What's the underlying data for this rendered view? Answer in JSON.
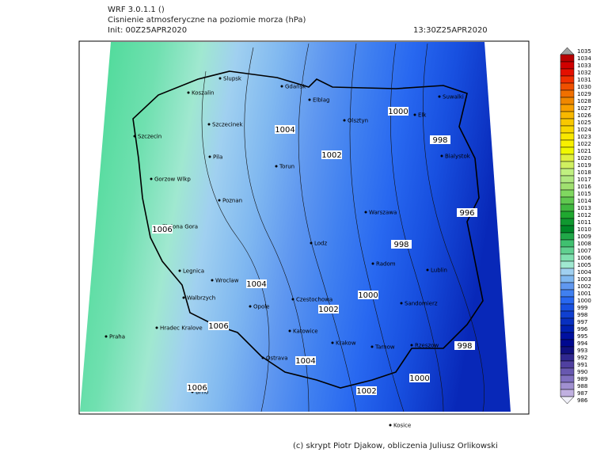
{
  "header": {
    "model": "WRF 3.0.1.1 ()",
    "title": "Cisnienie atmosferyczne na poziomie morza (hPa)",
    "init": "Init: 00Z25APR2020",
    "valid": "13:30Z25APR2020"
  },
  "cities": [
    "Slupsk",
    "Koszalin",
    "Szczecin",
    "Szczecinek",
    "Gdańsk",
    "Elblag",
    "Olsztyn",
    "Elk",
    "Suwalki",
    "Bialystok",
    "Gorzow Wlkp",
    "Pila",
    "Torun",
    "Poznan",
    "Zielona Gora",
    "Warszawa",
    "Lodz",
    "Radom",
    "Lublin",
    "Legnica",
    "Wroclaw",
    "Walbrzych",
    "Opole",
    "Czestochowa",
    "Hradec Kralove",
    "Praha",
    "Katowice",
    "Krakow",
    "Tarnow",
    "Rzeszow",
    "Sandomierz",
    "Ostrava",
    "Brno",
    "Kosice"
  ],
  "isobar_labels": [
    1006,
    1006,
    1006,
    1004,
    1004,
    1004,
    1002,
    1002,
    1002,
    1000,
    1000,
    1000,
    998,
    998,
    998,
    996
  ],
  "colorbar": {
    "levels": [
      1035,
      1034,
      1033,
      1032,
      1031,
      1030,
      1029,
      1028,
      1027,
      1026,
      1025,
      1024,
      1023,
      1022,
      1021,
      1020,
      1019,
      1018,
      1017,
      1016,
      1015,
      1014,
      1013,
      1012,
      1011,
      1010,
      1009,
      1008,
      1007,
      1006,
      1005,
      1004,
      1003,
      1002,
      1001,
      1000,
      999,
      998,
      997,
      996,
      995,
      994,
      993,
      992,
      991,
      990,
      989,
      988,
      987,
      986
    ],
    "colors": [
      "#a0a0a0",
      "#b80000",
      "#d00000",
      "#e41000",
      "#f03000",
      "#f05000",
      "#f07000",
      "#f08800",
      "#f8a000",
      "#f8b800",
      "#f8c800",
      "#f8d800",
      "#f8e800",
      "#f8f000",
      "#f0f800",
      "#e0f040",
      "#d0f060",
      "#c0f080",
      "#b0e880",
      "#a0e070",
      "#80d860",
      "#60c850",
      "#40b840",
      "#20a830",
      "#109830",
      "#008828",
      "#20a848",
      "#40c070",
      "#60d090",
      "#80e0b0",
      "#a0e8d0",
      "#a0d0f0",
      "#80b8f0",
      "#6098f0",
      "#4080f0",
      "#2868f0",
      "#1850e0",
      "#1040d0",
      "#0830c0",
      "#0020b0",
      "#0010a0",
      "#000890",
      "#101080",
      "#302890",
      "#5040a0",
      "#6858b0",
      "#8070c0",
      "#a090d0",
      "#c0b0e0",
      "#f0f0f8"
    ]
  },
  "footer": "(c) skrypt Piotr Djakow, obliczenia Juliusz Orlikowski"
}
